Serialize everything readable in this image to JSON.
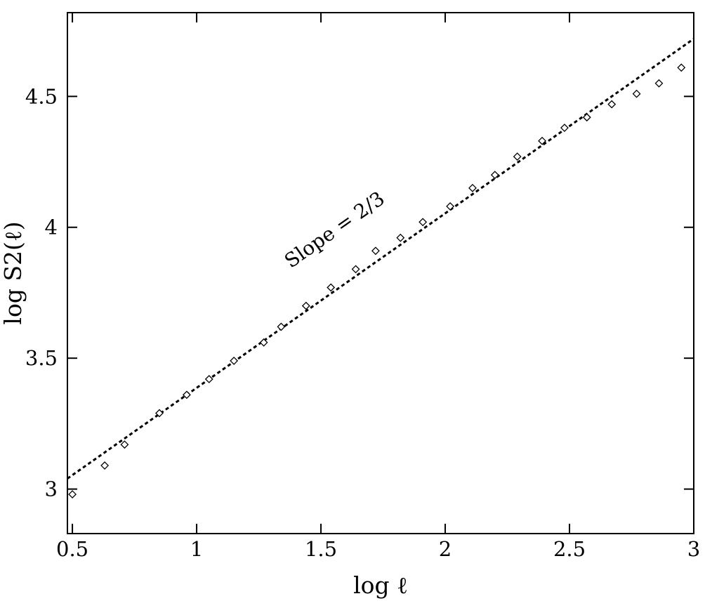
{
  "chart_data": {
    "type": "scatter",
    "title": "",
    "xlabel": "log ℓ",
    "ylabel": "log S2(ℓ)",
    "xlim": [
      0.48,
      3.0
    ],
    "ylim": [
      2.83,
      4.82
    ],
    "xticks": [
      0.5,
      1,
      1.5,
      2,
      2.5,
      3
    ],
    "xtick_labels": [
      "0.5",
      "1",
      "1.5",
      "2",
      "2.5",
      "3"
    ],
    "yticks": [
      3,
      3.5,
      4,
      4.5
    ],
    "ytick_labels": [
      "3",
      "3.5",
      "4",
      "4.5"
    ],
    "grid": false,
    "legend": "none",
    "marker": "diamond-open",
    "series": [
      {
        "x": [
          0.5,
          0.63,
          0.71,
          0.85,
          0.96,
          1.05,
          1.15,
          1.27,
          1.34,
          1.44,
          1.54,
          1.64,
          1.72,
          1.82,
          1.91,
          2.02,
          2.11,
          2.2,
          2.29,
          2.39,
          2.48,
          2.57,
          2.67,
          2.77,
          2.86,
          2.95
        ],
        "y": [
          2.98,
          3.09,
          3.17,
          3.29,
          3.36,
          3.42,
          3.49,
          3.56,
          3.62,
          3.7,
          3.77,
          3.84,
          3.91,
          3.96,
          4.02,
          4.08,
          4.15,
          4.2,
          4.27,
          4.33,
          4.38,
          4.42,
          4.47,
          4.51,
          4.55,
          4.61
        ]
      }
    ],
    "fit_line": {
      "style": "dotted",
      "slope": 0.6667,
      "x": [
        0.48,
        3.0
      ],
      "y": [
        3.04,
        4.72
      ]
    },
    "annotation": {
      "text": "Slope = 2/3",
      "x": 1.57,
      "y": 3.97
    }
  }
}
